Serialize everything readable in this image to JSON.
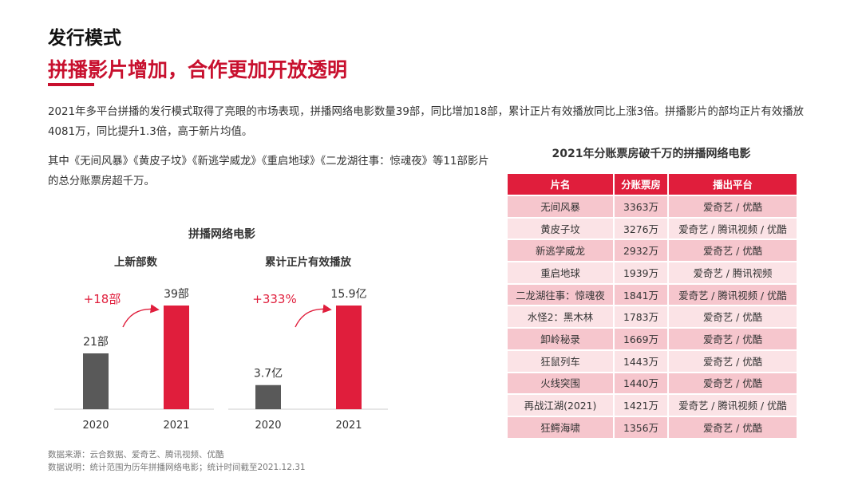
{
  "heading": "发行模式",
  "subheading": "拼播影片增加，合作更加开放透明",
  "paragraph1": "2021年多平台拼播的发行模式取得了亮眼的市场表现，拼播网络电影数量39部，同比增加18部，累计正片有效播放同比上涨3倍。拼播影片的部均正片有效播放4081万，同比提升1.3倍，高于新片均值。",
  "paragraph2": "其中《无间风暴》《黄皮子坟》《新逃学威龙》《重启地球》《二龙湖往事：惊魂夜》等11部影片的总分账票房超千万。",
  "colors": {
    "accent": "#c8102e",
    "bar_2021": "#e01e3c",
    "bar_2020": "#595959",
    "header": "#e01e3c"
  },
  "chart_data": [
    {
      "type": "bar",
      "group_title": "拼播网络电影",
      "title": "上新部数",
      "categories": [
        "2020",
        "2021"
      ],
      "values": [
        21,
        39
      ],
      "value_labels": [
        "21部",
        "39部"
      ],
      "annotation": "+18部"
    },
    {
      "type": "bar",
      "group_title": "拼播网络电影",
      "title": "累计正片有效播放",
      "categories": [
        "2020",
        "2021"
      ],
      "values": [
        3.7,
        15.9
      ],
      "value_labels": [
        "3.7亿",
        "15.9亿"
      ],
      "annotation": "+333%"
    },
    {
      "type": "table",
      "title": "2021年分账票房破千万的拼播网络电影",
      "columns": [
        "片名",
        "分账票房",
        "播出平台"
      ],
      "rows": [
        [
          "无间风暴",
          "3363万",
          "爱奇艺 / 优酷"
        ],
        [
          "黄皮子坟",
          "3276万",
          "爱奇艺 / 腾讯视频 / 优酷"
        ],
        [
          "新逃学威龙",
          "2932万",
          "爱奇艺 / 优酷"
        ],
        [
          "重启地球",
          "1939万",
          "爱奇艺 / 腾讯视频"
        ],
        [
          "二龙湖往事：惊魂夜",
          "1841万",
          "爱奇艺 / 腾讯视频 / 优酷"
        ],
        [
          "水怪2：黑木林",
          "1783万",
          "爱奇艺 / 优酷"
        ],
        [
          "卸岭秘录",
          "1669万",
          "爱奇艺 / 优酷"
        ],
        [
          "狂鼠列车",
          "1443万",
          "爱奇艺 / 优酷"
        ],
        [
          "火线突围",
          "1440万",
          "爱奇艺 / 优酷"
        ],
        [
          "再战江湖(2021)",
          "1421万",
          "爱奇艺 / 腾讯视频 / 优酷"
        ],
        [
          "狂鳄海啸",
          "1356万",
          "爱奇艺 / 优酷"
        ]
      ]
    }
  ],
  "source_line1": "数据来源：云合数据、爱奇艺、腾讯视频、优酷",
  "source_line2": "数据说明：统计范围为历年拼播网络电影；统计时间截至2021.12.31"
}
